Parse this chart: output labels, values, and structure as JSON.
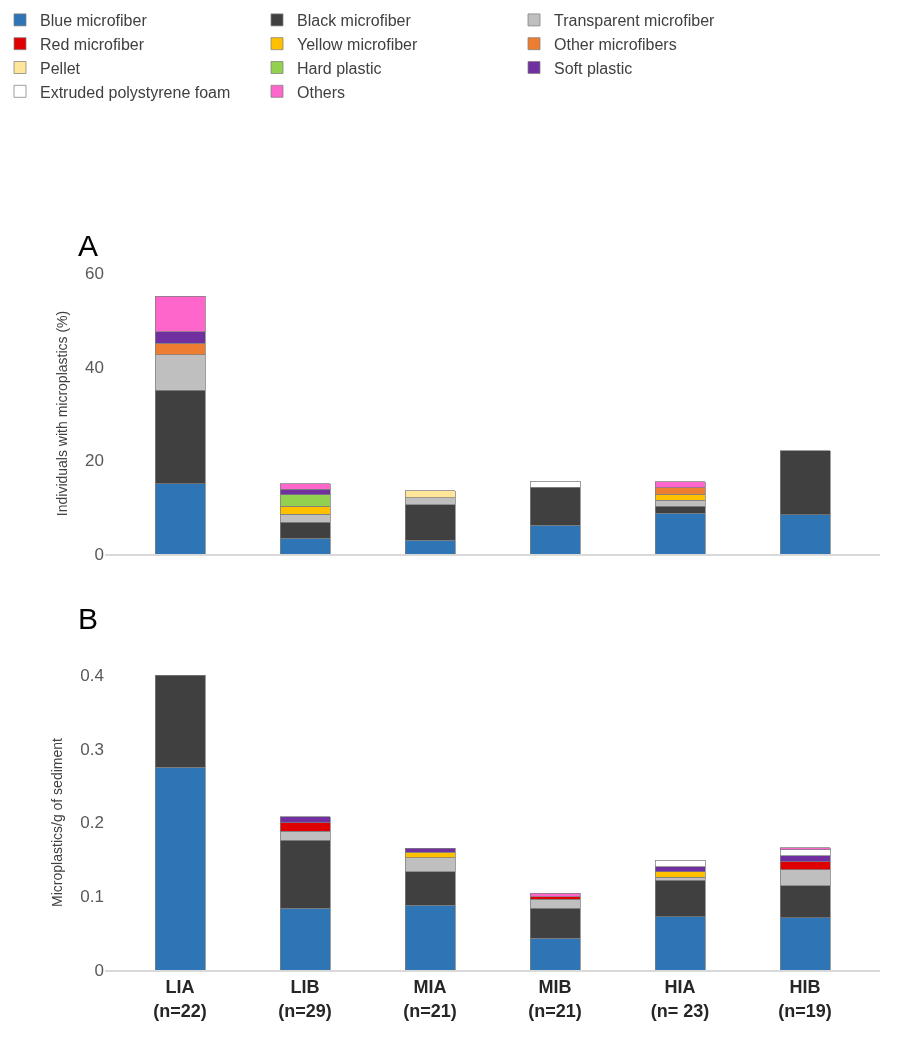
{
  "chart_data": [
    {
      "type": "bar",
      "title": "A",
      "ylabel": "Individuals with microplastics (%)",
      "stacked": true,
      "legend": "top",
      "grid": false,
      "tick_labels": "y",
      "categories": [
        null,
        null,
        null,
        null,
        null,
        null
      ],
      "ylim": [
        0,
        60
      ],
      "yticks": [
        0,
        20,
        40,
        60
      ],
      "series": [
        {
          "name": "Blue microfiber",
          "color": "#2e75b6",
          "values": [
            15,
            3.4,
            2.9,
            6.1,
            8.7,
            8.4
          ]
        },
        {
          "name": "Black microfiber",
          "color": "#404040",
          "values": [
            20,
            3.4,
            7.6,
            8.2,
            1.5,
            13.7
          ]
        },
        {
          "name": "Transparent microfiber",
          "color": "#bfbfbf",
          "values": [
            7.5,
            1.7,
            1.5,
            null,
            1.3,
            null
          ]
        },
        {
          "name": "Red microfiber",
          "color": "#e00000",
          "values": [
            null,
            null,
            null,
            null,
            null,
            null
          ]
        },
        {
          "name": "Yellow microfiber",
          "color": "#ffc000",
          "values": [
            null,
            1.7,
            null,
            null,
            1.3,
            null
          ]
        },
        {
          "name": "Other microfibers",
          "color": "#ed7d31",
          "values": [
            2.5,
            null,
            null,
            null,
            1.3,
            null
          ]
        },
        {
          "name": "Pellet",
          "color": "#ffe699",
          "values": [
            null,
            null,
            1.5,
            null,
            null,
            null
          ]
        },
        {
          "name": "Hard plastic",
          "color": "#92d050",
          "values": [
            null,
            2.4,
            null,
            null,
            null,
            null
          ]
        },
        {
          "name": "Soft plastic",
          "color": "#7030a0",
          "values": [
            2.5,
            1.2,
            null,
            null,
            null,
            null
          ]
        },
        {
          "name": "Extruded polystyrene foam",
          "color": "#ffffff",
          "values": [
            null,
            null,
            null,
            1.2,
            null,
            null
          ]
        },
        {
          "name": "Others",
          "color": "#ff66cc",
          "values": [
            7.5,
            1.2,
            null,
            null,
            1.3,
            null
          ]
        }
      ]
    },
    {
      "type": "bar",
      "title": "B",
      "ylabel": "Microplastics/g of sediment",
      "stacked": true,
      "legend": false,
      "grid": false,
      "categories": [
        "LIA\n(n=22)",
        "LIB\n(n=29)",
        "MIA\n(n=21)",
        "MIB\n(n=21)",
        "HIA\n(n= 23)",
        "HIB\n(n=19)"
      ],
      "ylim": [
        0,
        0.4
      ],
      "yticks": [
        0,
        0.1,
        0.2,
        0.3,
        0.4
      ],
      "series": [
        {
          "color": "#2e75b6",
          "values": [
            0.275,
            0.084,
            0.088,
            0.043,
            0.072,
            0.071
          ]
        },
        {
          "color": "#404040",
          "values": [
            0.125,
            0.092,
            0.045,
            0.041,
            0.05,
            0.043
          ]
        },
        {
          "color": "#bfbfbf",
          "values": [
            null,
            0.012,
            0.019,
            0.012,
            0.004,
            0.022
          ]
        },
        {
          "color": "#e00000",
          "values": [
            null,
            0.012,
            null,
            0.003,
            null,
            0.011
          ]
        },
        {
          "color": "#ffc000",
          "values": [
            null,
            null,
            0.008,
            null,
            0.007,
            null
          ]
        },
        {
          "color": "#ed7d31",
          "values": [
            null,
            null,
            null,
            null,
            null,
            null
          ]
        },
        {
          "color": "#ffe699",
          "values": [
            null,
            null,
            null,
            null,
            null,
            null
          ]
        },
        {
          "color": "#92d050",
          "values": [
            null,
            null,
            null,
            null,
            null,
            null
          ]
        },
        {
          "color": "#7030a0",
          "values": [
            null,
            0.008,
            0.005,
            null,
            0.007,
            0.008
          ]
        },
        {
          "color": "#ffffff",
          "values": [
            null,
            null,
            null,
            null,
            0.009,
            0.008
          ]
        },
        {
          "color": "#ff66cc",
          "values": [
            null,
            null,
            null,
            0.005,
            null,
            0.003
          ]
        }
      ]
    }
  ]
}
